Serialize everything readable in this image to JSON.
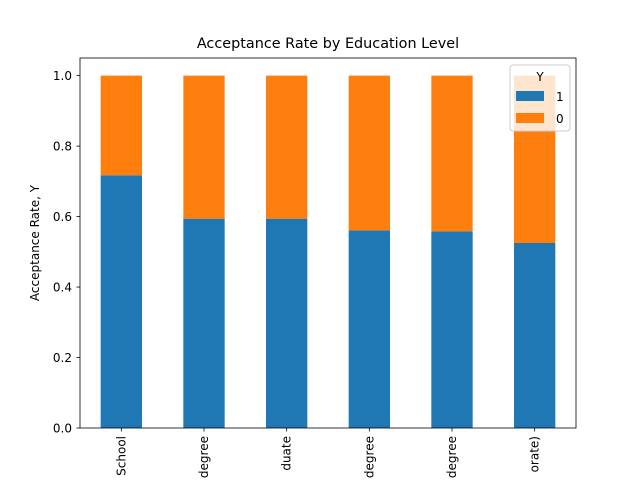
{
  "chart_data": {
    "type": "bar",
    "stacked": true,
    "title": "Acceptance Rate by Education Level",
    "xlabel": "",
    "ylabel": "Acceptance Rate, Y",
    "ylim": [
      0,
      1.05
    ],
    "yticks": [
      "0.0",
      "0.2",
      "0.4",
      "0.6",
      "0.8",
      "1.0"
    ],
    "categories": [
      "School",
      "degree",
      "duate",
      "degree",
      "degree",
      "orate)"
    ],
    "series": [
      {
        "name": "1",
        "color": "#1f77b4",
        "values": [
          0.717,
          0.594,
          0.594,
          0.561,
          0.558,
          0.525
        ]
      },
      {
        "name": "0",
        "color": "#ff7f0e",
        "values": [
          0.283,
          0.406,
          0.406,
          0.439,
          0.442,
          0.475
        ]
      }
    ],
    "legend": {
      "title": "Y",
      "placement": "top-right"
    },
    "grid": false
  }
}
